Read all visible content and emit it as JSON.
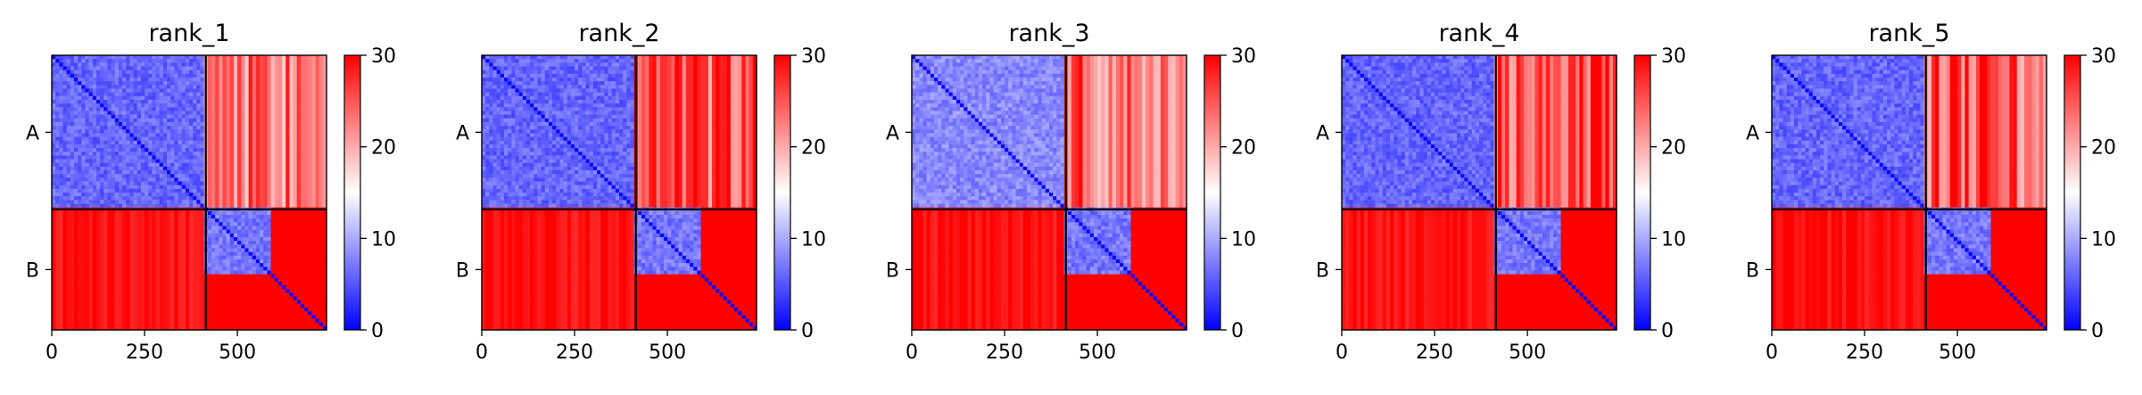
{
  "chart_data": [
    {
      "type": "heatmap",
      "title": "rank_1",
      "xlabel": "",
      "ylabel": "",
      "x_ticks": [
        0,
        250,
        500
      ],
      "x_range": [
        0,
        740
      ],
      "y_categories": [
        "A",
        "B"
      ],
      "chain_boundary": 415,
      "colorbar": {
        "min": 0,
        "max": 30,
        "ticks": [
          0,
          10,
          20,
          30
        ],
        "colormap": [
          "#0000ff",
          "#ffffff",
          "#ff0000"
        ]
      },
      "blocks": [
        {
          "rows": "A",
          "cols": "A",
          "approx_value": 4
        },
        {
          "rows": "A",
          "cols": "B",
          "approx_value": 24
        },
        {
          "rows": "B",
          "cols": "A",
          "approx_value": 29
        },
        {
          "rows": "B",
          "cols": "B (domain 415-590)",
          "approx_value": 5
        },
        {
          "rows": "B",
          "cols": "B (tail 590-740)",
          "approx_value": 30
        }
      ]
    },
    {
      "type": "heatmap",
      "title": "rank_2",
      "xlabel": "",
      "ylabel": "",
      "x_ticks": [
        0,
        250,
        500
      ],
      "x_range": [
        0,
        740
      ],
      "y_categories": [
        "A",
        "B"
      ],
      "chain_boundary": 415,
      "colorbar": {
        "min": 0,
        "max": 30,
        "ticks": [
          0,
          10,
          20,
          30
        ],
        "colormap": [
          "#0000ff",
          "#ffffff",
          "#ff0000"
        ]
      },
      "blocks": [
        {
          "rows": "A",
          "cols": "A",
          "approx_value": 4
        },
        {
          "rows": "A",
          "cols": "B",
          "approx_value": 25
        },
        {
          "rows": "B",
          "cols": "A",
          "approx_value": 29
        },
        {
          "rows": "B",
          "cols": "B (domain 415-590)",
          "approx_value": 5
        },
        {
          "rows": "B",
          "cols": "B (tail 590-740)",
          "approx_value": 30
        }
      ]
    },
    {
      "type": "heatmap",
      "title": "rank_3",
      "xlabel": "",
      "ylabel": "",
      "x_ticks": [
        0,
        250,
        500
      ],
      "x_range": [
        0,
        740
      ],
      "y_categories": [
        "A",
        "B"
      ],
      "chain_boundary": 415,
      "colorbar": {
        "min": 0,
        "max": 30,
        "ticks": [
          0,
          10,
          20,
          30
        ],
        "colormap": [
          "#0000ff",
          "#ffffff",
          "#ff0000"
        ]
      },
      "blocks": [
        {
          "rows": "A",
          "cols": "A",
          "approx_value": 6
        },
        {
          "rows": "A",
          "cols": "B",
          "approx_value": 24
        },
        {
          "rows": "B",
          "cols": "A",
          "approx_value": 29
        },
        {
          "rows": "B",
          "cols": "B (domain 415-590)",
          "approx_value": 5
        },
        {
          "rows": "B",
          "cols": "B (tail 590-740)",
          "approx_value": 30
        }
      ]
    },
    {
      "type": "heatmap",
      "title": "rank_4",
      "xlabel": "",
      "ylabel": "",
      "x_ticks": [
        0,
        250,
        500
      ],
      "x_range": [
        0,
        740
      ],
      "y_categories": [
        "A",
        "B"
      ],
      "chain_boundary": 415,
      "colorbar": {
        "min": 0,
        "max": 30,
        "ticks": [
          0,
          10,
          20,
          30
        ],
        "colormap": [
          "#0000ff",
          "#ffffff",
          "#ff0000"
        ]
      },
      "blocks": [
        {
          "rows": "A",
          "cols": "A",
          "approx_value": 4
        },
        {
          "rows": "A",
          "cols": "B",
          "approx_value": 25
        },
        {
          "rows": "B",
          "cols": "A",
          "approx_value": 29
        },
        {
          "rows": "B",
          "cols": "B (domain 415-590)",
          "approx_value": 5
        },
        {
          "rows": "B",
          "cols": "B (tail 590-740)",
          "approx_value": 30
        }
      ]
    },
    {
      "type": "heatmap",
      "title": "rank_5",
      "xlabel": "",
      "ylabel": "",
      "x_ticks": [
        0,
        250,
        500
      ],
      "x_range": [
        0,
        740
      ],
      "y_categories": [
        "A",
        "B"
      ],
      "chain_boundary": 415,
      "colorbar": {
        "min": 0,
        "max": 30,
        "ticks": [
          0,
          10,
          20,
          30
        ],
        "colormap": [
          "#0000ff",
          "#ffffff",
          "#ff0000"
        ]
      },
      "blocks": [
        {
          "rows": "A",
          "cols": "A",
          "approx_value": 4
        },
        {
          "rows": "A",
          "cols": "B",
          "approx_value": 25
        },
        {
          "rows": "B",
          "cols": "A",
          "approx_value": 29
        },
        {
          "rows": "B",
          "cols": "B (domain 415-590)",
          "approx_value": 5
        },
        {
          "rows": "B",
          "cols": "B (tail 590-740)",
          "approx_value": 30
        }
      ]
    }
  ]
}
